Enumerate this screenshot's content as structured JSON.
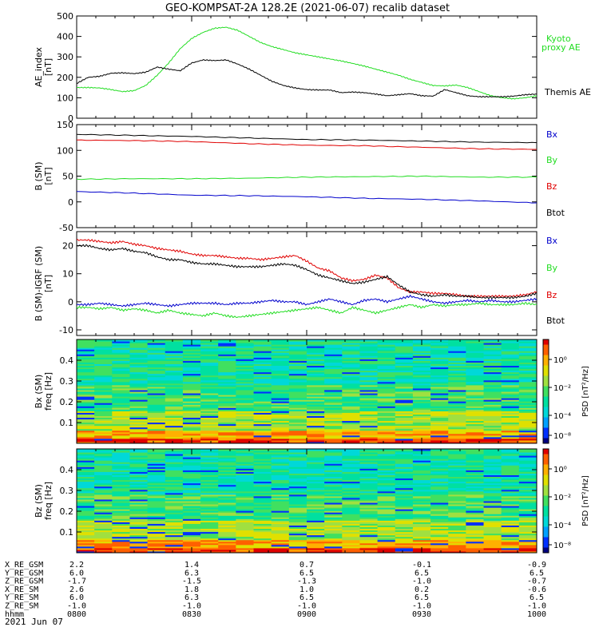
{
  "title": "GEO-KOMPSAT-2A 128.2E (2021-06-07) recalib dataset",
  "colors": {
    "black": "#000000",
    "green": "#22dd22",
    "red": "#e00000",
    "blue": "#0000cc"
  },
  "chart_data": [
    {
      "type": "line",
      "ylabel": "AE_index",
      "yunit": "[nT]",
      "ylim": [
        0,
        500
      ],
      "yticks": [
        0,
        100,
        200,
        300,
        400,
        500
      ],
      "x_hours": [
        8.0,
        8.05,
        8.1,
        8.15,
        8.2,
        8.25,
        8.3,
        8.35,
        8.4,
        8.45,
        8.5,
        8.55,
        8.6,
        8.65,
        8.7,
        8.75,
        8.8,
        8.85,
        8.9,
        8.95,
        9.0,
        9.05,
        9.1,
        9.15,
        9.2,
        9.25,
        9.3,
        9.35,
        9.4,
        9.45,
        9.5,
        9.55,
        9.6,
        9.65,
        9.7,
        9.75,
        9.8,
        9.85,
        9.9,
        9.95,
        10.0
      ],
      "series": [
        {
          "name": "Kyoto proxy AE",
          "color": "#22dd22",
          "values": [
            150,
            150,
            148,
            140,
            130,
            135,
            160,
            210,
            270,
            340,
            390,
            420,
            440,
            445,
            430,
            400,
            370,
            350,
            335,
            320,
            310,
            300,
            290,
            280,
            268,
            255,
            240,
            225,
            210,
            190,
            175,
            160,
            158,
            162,
            150,
            130,
            110,
            100,
            95,
            100,
            110
          ]
        },
        {
          "name": "Themis AE",
          "color": "#000000",
          "values": [
            170,
            200,
            205,
            220,
            222,
            218,
            225,
            250,
            240,
            232,
            270,
            285,
            282,
            285,
            265,
            240,
            210,
            180,
            160,
            148,
            140,
            138,
            138,
            125,
            128,
            125,
            118,
            110,
            115,
            120,
            110,
            108,
            140,
            125,
            110,
            105,
            105,
            105,
            108,
            115,
            118
          ]
        }
      ]
    },
    {
      "type": "line",
      "ylabel": "B (SM)",
      "yunit": "[nT]",
      "ylim": [
        -50,
        150
      ],
      "yticks": [
        -50,
        0,
        50,
        100,
        150
      ],
      "x_hours": [
        8.0,
        8.25,
        8.5,
        8.75,
        9.0,
        9.25,
        9.5,
        9.75,
        10.0
      ],
      "series": [
        {
          "name": "Bx",
          "color": "#0000cc",
          "values": [
            20,
            17,
            13,
            12,
            10,
            7,
            5,
            2,
            -2
          ]
        },
        {
          "name": "By",
          "color": "#22dd22",
          "values": [
            44,
            45,
            45,
            46,
            48,
            49,
            50,
            48,
            48
          ]
        },
        {
          "name": "Bz",
          "color": "#e00000",
          "values": [
            120,
            119,
            117,
            113,
            110,
            109,
            106,
            103,
            102
          ]
        },
        {
          "name": "Btot",
          "color": "#000000",
          "values": [
            131,
            129,
            127,
            124,
            121,
            120,
            118,
            116,
            115
          ]
        }
      ]
    },
    {
      "type": "line",
      "ylabel": "B (SM)-IGRF (SM)",
      "yunit": "[nT]",
      "ylim": [
        -12,
        25
      ],
      "yticks": [
        -10,
        0,
        10,
        20
      ],
      "x_hours": [
        8.0,
        8.05,
        8.1,
        8.15,
        8.2,
        8.25,
        8.3,
        8.35,
        8.4,
        8.45,
        8.5,
        8.55,
        8.6,
        8.65,
        8.7,
        8.75,
        8.8,
        8.85,
        8.9,
        8.95,
        9.0,
        9.05,
        9.1,
        9.15,
        9.2,
        9.25,
        9.3,
        9.35,
        9.4,
        9.45,
        9.5,
        9.55,
        9.6,
        9.65,
        9.7,
        9.75,
        9.8,
        9.85,
        9.9,
        9.95,
        10.0
      ],
      "series": [
        {
          "name": "Bx",
          "color": "#0000cc",
          "values": [
            -1,
            -1,
            -0.5,
            -1,
            -1.5,
            -1,
            -0.5,
            -1,
            -1.5,
            -1,
            -0.5,
            -0.5,
            -0.5,
            -1,
            -0.5,
            -0.5,
            0,
            0.5,
            0,
            0,
            -1,
            0,
            1,
            0,
            -1,
            0.5,
            1,
            0,
            1,
            2,
            1,
            0,
            -0.5,
            0,
            0.5,
            0,
            0.5,
            0,
            0,
            0.5,
            1
          ]
        },
        {
          "name": "By",
          "color": "#22dd22",
          "values": [
            -2,
            -2,
            -2.5,
            -2,
            -3,
            -2.5,
            -3,
            -4,
            -3,
            -4,
            -4.5,
            -5,
            -4,
            -5,
            -5.5,
            -5,
            -4.5,
            -4,
            -3.5,
            -3,
            -2.5,
            -2,
            -3,
            -4,
            -2,
            -3,
            -4,
            -3,
            -2,
            -1,
            -2,
            -1,
            -1.5,
            -1,
            -1,
            -0.5,
            -1,
            -1,
            -1,
            -0.5,
            -1
          ]
        },
        {
          "name": "Bz",
          "color": "#e00000",
          "values": [
            22,
            22,
            21.5,
            21,
            21.5,
            20.5,
            20,
            19,
            18.5,
            18,
            17,
            16.5,
            16.5,
            16,
            15.5,
            15.5,
            15,
            15.5,
            16,
            16.5,
            14.5,
            12,
            11,
            8.5,
            7.5,
            8,
            9.5,
            8.5,
            5,
            3.5,
            3.5,
            3,
            3,
            2.5,
            2,
            2,
            2,
            2,
            2,
            2.5,
            3.5
          ]
        },
        {
          "name": "Btot",
          "color": "#000000",
          "values": [
            20,
            20,
            19,
            18.5,
            19,
            18,
            17.5,
            16,
            15,
            15,
            14,
            13.5,
            13.5,
            13,
            12.5,
            12.5,
            12.5,
            13,
            13.5,
            13,
            11.5,
            9.5,
            8.5,
            7.5,
            6.5,
            7,
            8,
            9,
            6,
            3.5,
            2.5,
            2,
            2.5,
            2,
            2,
            1.5,
            1.5,
            1.5,
            1.5,
            2,
            3
          ]
        }
      ]
    },
    {
      "type": "heatmap",
      "ylabel": "Bx (SM)",
      "yunit": "freq [Hz]",
      "ylim": [
        0,
        0.5
      ],
      "yticks": [
        0.1,
        0.2,
        0.3,
        0.4
      ],
      "colorbar_label": "PSD [nT²/Hz]",
      "colorbar_ticks": [
        "10⁰",
        "10⁻²",
        "10⁻⁴",
        "10⁻⁸"
      ]
    },
    {
      "type": "heatmap",
      "ylabel": "Bz (SM)",
      "yunit": "freq [Hz]",
      "ylim": [
        0,
        0.5
      ],
      "yticks": [
        0.1,
        0.2,
        0.3,
        0.4
      ],
      "colorbar_label": "PSD [nT²/Hz]",
      "colorbar_ticks": [
        "10⁰",
        "10⁻²",
        "10⁻⁴",
        "10⁻⁸"
      ]
    }
  ],
  "legends": {
    "panel1": [
      "Kyoto",
      "proxy AE",
      "Themis AE"
    ],
    "panel2": [
      "Bx",
      "By",
      "Bz",
      "Btot"
    ],
    "panel3": [
      "Bx",
      "By",
      "Bz",
      "Btot"
    ]
  },
  "orbit_table": {
    "rows": [
      {
        "label": "X_RE_GSM",
        "values": [
          "2.2",
          "1.4",
          "0.7",
          "-0.1",
          "-0.9"
        ]
      },
      {
        "label": "Y_RE_GSM",
        "values": [
          "6.0",
          "6.3",
          "6.5",
          "6.5",
          "6.5"
        ]
      },
      {
        "label": "Z_RE_GSM",
        "values": [
          "-1.7",
          "-1.5",
          "-1.3",
          "-1.0",
          "-0.7"
        ]
      },
      {
        "label": "X_RE_SM",
        "values": [
          "2.6",
          "1.8",
          "1.0",
          "0.2",
          "-0.6"
        ]
      },
      {
        "label": "Y_RE_SM",
        "values": [
          "6.0",
          "6.3",
          "6.5",
          "6.5",
          "6.5"
        ]
      },
      {
        "label": "Z_RE_SM",
        "values": [
          "-1.0",
          "-1.0",
          "-1.0",
          "-1.0",
          "-1.0"
        ]
      },
      {
        "label": "hhmm",
        "values": [
          "0800",
          "0830",
          "0900",
          "0930",
          "1000"
        ]
      }
    ],
    "date": "2021 Jun 07"
  }
}
